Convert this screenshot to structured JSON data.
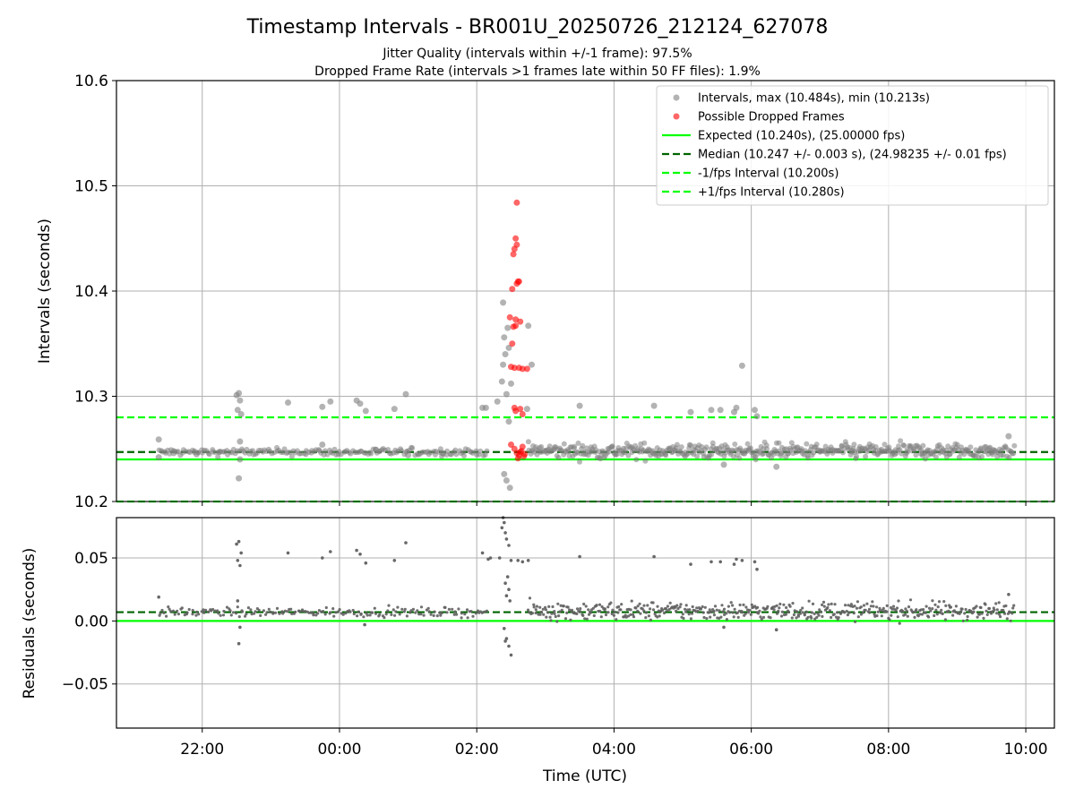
{
  "figure": {
    "title": "Timestamp Intervals - BR001U_20250726_212124_627078",
    "subtitle_1": "Jitter Quality (intervals within +/-1 frame): 97.5%",
    "subtitle_2": "Dropped Frame Rate (intervals >1 frames late within 50 FF files): 1.9%",
    "xlabel": "Time (UTC)"
  },
  "colors": {
    "intervals": "#808080",
    "dropped": "#ff0000",
    "expected": "#00ff00",
    "median": "#006400",
    "fps_bound": "#00ff00",
    "residual_points": "#606060",
    "grid": "#b0b0b0"
  },
  "chart_data": [
    {
      "type": "scatter",
      "panel": "intervals",
      "ylabel": "Intervals (seconds)",
      "ylim": [
        10.2,
        10.6
      ],
      "y_ticks": [
        10.2,
        10.3,
        10.4,
        10.5,
        10.6
      ],
      "y_tick_labels": [
        "10.2",
        "10.3",
        "10.4",
        "10.5",
        "10.6"
      ],
      "x_ticks": [
        "22:00",
        "00:00",
        "02:00",
        "04:00",
        "06:00",
        "08:00",
        "10:00"
      ],
      "x_range_utc": [
        "2025-07-26 20:45",
        "2025-07-27 10:25"
      ],
      "grid": true,
      "legend_position": "top-right",
      "legend": [
        "Intervals, max (10.484s), min (10.213s)",
        "Possible Dropped Frames",
        "Expected (10.240s), (25.00000 fps)",
        "Median (10.247 +/- 0.003 s), (24.98235 +/- 0.01 fps)",
        "-1/fps Interval (10.200s)",
        "+1/fps Interval (10.280s)"
      ],
      "reference_lines": {
        "expected": 10.24,
        "median": 10.247,
        "minus_1_fps": 10.2,
        "plus_1_fps": 10.28
      },
      "series": [
        {
          "name": "Intervals, max (10.484s), min (10.213s)",
          "points": [
            [
              "2025-07-26 21:22",
              10.259
            ],
            [
              "2025-07-26 21:22",
              10.242
            ],
            [
              "2025-07-26 21:35",
              10.246
            ],
            [
              "2025-07-26 21:55",
              10.245
            ],
            [
              "2025-07-26 22:15",
              10.247
            ],
            [
              "2025-07-26 22:30",
              10.301
            ],
            [
              "2025-07-26 22:32",
              10.303
            ],
            [
              "2025-07-26 22:33",
              10.296
            ],
            [
              "2025-07-26 22:31",
              10.287
            ],
            [
              "2025-07-26 22:34",
              10.283
            ],
            [
              "2025-07-26 22:33",
              10.257
            ],
            [
              "2025-07-26 22:32",
              10.222
            ],
            [
              "2025-07-26 22:33",
              10.24
            ],
            [
              "2025-07-26 23:15",
              10.294
            ],
            [
              "2025-07-26 23:45",
              10.29
            ],
            [
              "2025-07-26 23:52",
              10.295
            ],
            [
              "2025-07-27 00:15",
              10.296
            ],
            [
              "2025-07-27 00:18",
              10.293
            ],
            [
              "2025-07-27 00:23",
              10.286
            ],
            [
              "2025-07-27 00:48",
              10.288
            ],
            [
              "2025-07-27 00:58",
              10.302
            ],
            [
              "2025-07-26 23:45",
              10.254
            ],
            [
              "2025-07-27 00:32",
              10.249
            ],
            [
              "2025-07-27 01:00",
              10.244
            ],
            [
              "2025-07-27 01:30",
              10.246
            ],
            [
              "2025-07-27 02:05",
              10.289
            ],
            [
              "2025-07-27 02:08",
              10.289
            ],
            [
              "2025-07-27 02:18",
              10.295
            ],
            [
              "2025-07-27 02:22",
              10.314
            ],
            [
              "2025-07-27 02:23",
              10.33
            ],
            [
              "2025-07-27 02:24",
              10.356
            ],
            [
              "2025-07-27 02:23",
              10.389
            ],
            [
              "2025-07-27 02:27",
              10.365
            ],
            [
              "2025-07-27 02:28",
              10.346
            ],
            [
              "2025-07-27 02:25",
              10.34
            ],
            [
              "2025-07-27 02:30",
              10.312
            ],
            [
              "2025-07-27 02:26",
              10.302
            ],
            [
              "2025-07-27 02:28",
              10.276
            ],
            [
              "2025-07-27 02:24",
              10.226
            ],
            [
              "2025-07-27 02:29",
              10.213
            ],
            [
              "2025-07-27 02:26",
              10.22
            ],
            [
              "2025-07-27 02:45",
              10.367
            ],
            [
              "2025-07-27 02:48",
              10.33
            ],
            [
              "2025-07-27 02:44",
              10.288
            ],
            [
              "2025-07-27 03:30",
              10.291
            ],
            [
              "2025-07-27 04:35",
              10.291
            ],
            [
              "2025-07-27 05:07",
              10.285
            ],
            [
              "2025-07-27 05:25",
              10.287
            ],
            [
              "2025-07-27 05:33",
              10.287
            ],
            [
              "2025-07-27 05:45",
              10.285
            ],
            [
              "2025-07-27 05:47",
              10.289
            ],
            [
              "2025-07-27 05:52",
              10.329
            ],
            [
              "2025-07-27 06:03",
              10.287
            ],
            [
              "2025-07-27 06:05",
              10.281
            ],
            [
              "2025-07-27 05:36",
              10.235
            ],
            [
              "2025-07-27 06:22",
              10.233
            ],
            [
              "2025-07-27 07:30",
              10.247
            ],
            [
              "2025-07-27 08:30",
              10.246
            ],
            [
              "2025-07-27 09:30",
              10.247
            ],
            [
              "2025-07-27 09:45",
              10.262
            ]
          ],
          "dense_band": {
            "segments": [
              [
                "2025-07-26 21:22",
                "2025-07-27 02:10",
                10.247,
                0.003
              ],
              [
                "2025-07-27 02:45",
                "2025-07-27 09:50",
                10.248,
                0.006
              ]
            ]
          }
        },
        {
          "name": "Possible Dropped Frames",
          "points": [
            [
              "2025-07-27 02:35",
              10.484
            ],
            [
              "2025-07-27 02:34",
              10.45
            ],
            [
              "2025-07-27 02:35",
              10.444
            ],
            [
              "2025-07-27 02:33",
              10.44
            ],
            [
              "2025-07-27 02:32",
              10.435
            ],
            [
              "2025-07-27 02:36",
              10.409
            ],
            [
              "2025-07-27 02:37",
              10.409
            ],
            [
              "2025-07-27 02:35",
              10.407
            ],
            [
              "2025-07-27 02:31",
              10.402
            ],
            [
              "2025-07-27 02:29",
              10.375
            ],
            [
              "2025-07-27 02:34",
              10.373
            ],
            [
              "2025-07-27 02:38",
              10.371
            ],
            [
              "2025-07-27 02:34",
              10.367
            ],
            [
              "2025-07-27 02:32",
              10.366
            ],
            [
              "2025-07-27 02:31",
              10.35
            ],
            [
              "2025-07-27 02:30",
              10.328
            ],
            [
              "2025-07-27 02:33",
              10.327
            ],
            [
              "2025-07-27 02:37",
              10.327
            ],
            [
              "2025-07-27 02:40",
              10.326
            ],
            [
              "2025-07-27 02:44",
              10.326
            ],
            [
              "2025-07-27 02:33",
              10.289
            ],
            [
              "2025-07-27 02:38",
              10.288
            ],
            [
              "2025-07-27 02:40",
              10.283
            ],
            [
              "2025-07-27 02:34",
              10.286
            ],
            [
              "2025-07-27 02:30",
              10.254
            ],
            [
              "2025-07-27 02:33",
              10.25
            ],
            [
              "2025-07-27 02:35",
              10.246
            ],
            [
              "2025-07-27 02:37",
              10.244
            ],
            [
              "2025-07-27 02:39",
              10.248
            ],
            [
              "2025-07-27 02:41",
              10.243
            ],
            [
              "2025-07-27 02:36",
              10.241
            ],
            [
              "2025-07-27 02:40",
              10.252
            ],
            [
              "2025-07-27 02:42",
              10.245
            ],
            [
              "2025-07-27 02:38",
              10.247
            ]
          ]
        }
      ]
    },
    {
      "type": "scatter",
      "panel": "residuals",
      "ylabel": "Residuals (seconds)",
      "ylim": [
        -0.085,
        0.082
      ],
      "y_ticks": [
        -0.05,
        0.0,
        0.05
      ],
      "y_tick_labels": [
        "−0.05",
        "0.00",
        "0.05"
      ],
      "x_ticks": [
        "22:00",
        "00:00",
        "02:00",
        "04:00",
        "06:00",
        "08:00",
        "10:00"
      ],
      "x_range_utc": [
        "2025-07-26 20:45",
        "2025-07-27 10:25"
      ],
      "grid": true,
      "reference_lines": {
        "expected_residual": 0.0,
        "median_residual": 0.007
      },
      "series": [
        {
          "name": "Residuals",
          "points": [
            [
              "2025-07-26 21:22",
              0.019
            ],
            [
              "2025-07-26 22:30",
              0.061
            ],
            [
              "2025-07-26 22:32",
              0.063
            ],
            [
              "2025-07-26 22:31",
              0.048
            ],
            [
              "2025-07-26 22:33",
              0.044
            ],
            [
              "2025-07-26 22:34",
              0.054
            ],
            [
              "2025-07-26 22:32",
              -0.018
            ],
            [
              "2025-07-26 22:33",
              -0.005
            ],
            [
              "2025-07-26 22:31",
              0.016
            ],
            [
              "2025-07-26 23:15",
              0.054
            ],
            [
              "2025-07-26 23:45",
              0.05
            ],
            [
              "2025-07-26 23:52",
              0.055
            ],
            [
              "2025-07-27 00:15",
              0.056
            ],
            [
              "2025-07-27 00:18",
              0.053
            ],
            [
              "2025-07-27 00:23",
              0.046
            ],
            [
              "2025-07-27 00:48",
              0.048
            ],
            [
              "2025-07-27 00:58",
              0.062
            ],
            [
              "2025-07-27 00:22",
              -0.003
            ],
            [
              "2025-07-27 02:05",
              0.054
            ],
            [
              "2025-07-27 02:10",
              0.049
            ],
            [
              "2025-07-27 02:12",
              0.05
            ],
            [
              "2025-07-27 02:20",
              0.05
            ],
            [
              "2025-07-27 02:22",
              0.074
            ],
            [
              "2025-07-27 02:23",
              0.082
            ],
            [
              "2025-07-27 02:24",
              0.078
            ],
            [
              "2025-07-27 02:25",
              0.07
            ],
            [
              "2025-07-27 02:26",
              0.065
            ],
            [
              "2025-07-27 02:28",
              0.06
            ],
            [
              "2025-07-27 02:30",
              0.048
            ],
            [
              "2025-07-27 02:27",
              0.035
            ],
            [
              "2025-07-27 02:25",
              0.03
            ],
            [
              "2025-07-27 02:28",
              0.025
            ],
            [
              "2025-07-27 02:26",
              0.02
            ],
            [
              "2025-07-27 02:29",
              0.016
            ],
            [
              "2025-07-27 02:24",
              -0.006
            ],
            [
              "2025-07-27 02:26",
              -0.014
            ],
            [
              "2025-07-27 02:25",
              -0.016
            ],
            [
              "2025-07-27 02:28",
              -0.02
            ],
            [
              "2025-07-27 02:30",
              -0.027
            ],
            [
              "2025-07-27 02:36",
              0.048
            ],
            [
              "2025-07-27 02:40",
              0.047
            ],
            [
              "2025-07-27 02:45",
              0.048
            ],
            [
              "2025-07-27 03:30",
              0.051
            ],
            [
              "2025-07-27 04:35",
              0.051
            ],
            [
              "2025-07-27 05:07",
              0.045
            ],
            [
              "2025-07-27 05:25",
              0.047
            ],
            [
              "2025-07-27 05:33",
              0.047
            ],
            [
              "2025-07-27 05:45",
              0.045
            ],
            [
              "2025-07-27 05:47",
              0.049
            ],
            [
              "2025-07-27 05:52",
              0.048
            ],
            [
              "2025-07-27 06:03",
              0.047
            ],
            [
              "2025-07-27 06:05",
              0.041
            ],
            [
              "2025-07-27 05:36",
              -0.005
            ],
            [
              "2025-07-27 06:22",
              -0.007
            ],
            [
              "2025-07-27 09:45",
              0.021
            ]
          ],
          "dense_band": {
            "segments": [
              [
                "2025-07-26 21:22",
                "2025-07-27 02:10",
                0.007,
                0.003
              ],
              [
                "2025-07-27 02:45",
                "2025-07-27 09:50",
                0.008,
                0.006
              ]
            ]
          }
        }
      ]
    }
  ]
}
